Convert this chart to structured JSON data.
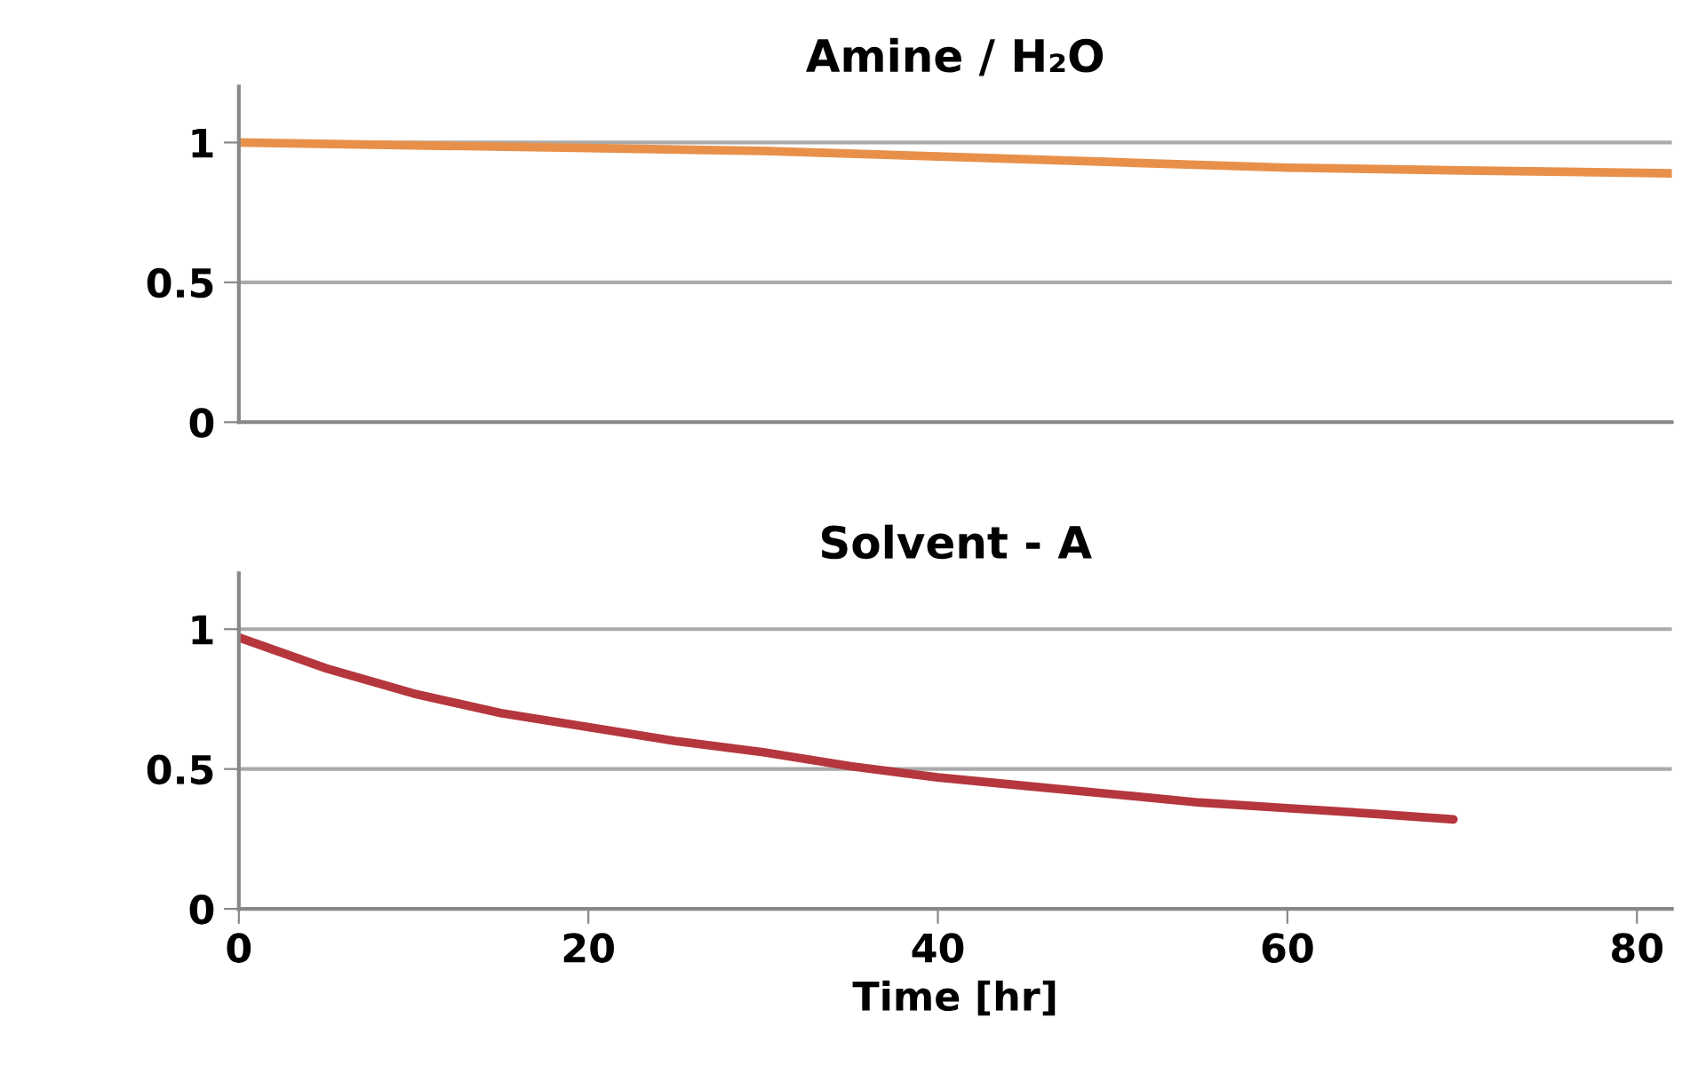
{
  "chart_data": [
    {
      "type": "line",
      "title": "Amine / H₂O",
      "x": [
        0,
        10,
        20,
        30,
        40,
        50,
        60,
        70,
        82
      ],
      "series": [
        {
          "color": "#e8904a",
          "values": [
            1.0,
            0.99,
            0.98,
            0.97,
            0.95,
            0.93,
            0.91,
            0.9,
            0.89
          ]
        }
      ],
      "xlim": [
        0,
        82
      ],
      "xticks": [
        0,
        20,
        40,
        60,
        80
      ],
      "ylim": [
        0,
        1.2
      ],
      "yticks": [
        0,
        0.5,
        1
      ],
      "grid": "y",
      "tick_labels": "y"
    },
    {
      "type": "line",
      "title": "Solvent - A",
      "xlabel": "Time [hr]",
      "x": [
        0,
        5,
        10,
        15,
        20,
        25,
        30,
        35,
        40,
        45,
        50,
        55,
        60,
        65,
        69.5
      ],
      "series": [
        {
          "color": "#b5373d",
          "values": [
            0.97,
            0.86,
            0.77,
            0.7,
            0.65,
            0.6,
            0.56,
            0.51,
            0.47,
            0.44,
            0.41,
            0.38,
            0.36,
            0.34,
            0.32
          ]
        }
      ],
      "xlim": [
        0,
        82
      ],
      "xticks": [
        0,
        20,
        40,
        60,
        80
      ],
      "ylim": [
        0,
        1.2
      ],
      "yticks": [
        0,
        0.5,
        1
      ],
      "grid": "y"
    }
  ]
}
